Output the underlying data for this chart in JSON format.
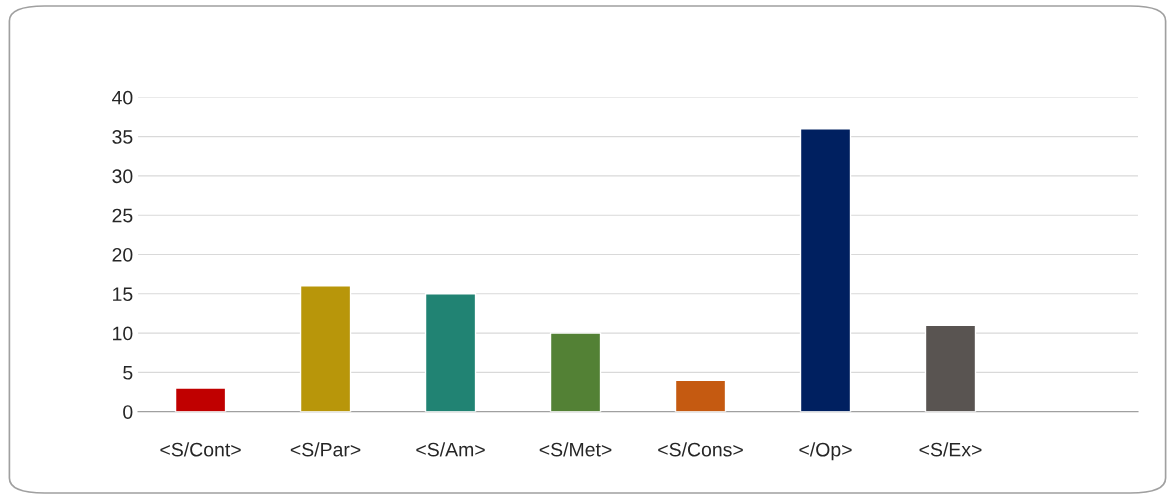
{
  "chart_data": {
    "type": "bar",
    "categories": [
      "<S/Cont>",
      "<S/Par>",
      "<S/Am>",
      "<S/Met>",
      "<S/Cons>",
      "</Op>",
      "<S/Ex>",
      null
    ],
    "values": [
      3,
      16,
      15,
      10,
      4,
      36,
      11,
      null
    ],
    "colors": [
      "#c00000",
      "#b8960a",
      "#218373",
      "#538135",
      "#c55a11",
      "#002060",
      "#595451",
      "#595451"
    ],
    "ylim": [
      0,
      40
    ],
    "yticks": [
      0,
      5,
      10,
      15,
      20,
      25,
      30,
      35,
      40
    ],
    "grid": "y",
    "legend": false
  }
}
